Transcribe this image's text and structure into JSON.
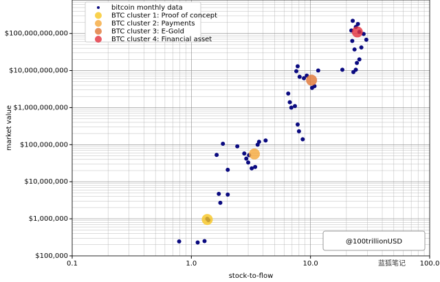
{
  "chart_data": {
    "type": "scatter",
    "x_label": "stock-to-flow",
    "y_label": "market value",
    "log_x": true,
    "log_y": true,
    "grid": "both",
    "legend": "upper left",
    "xlim": [
      0.1,
      100
    ],
    "ylim": [
      100000,
      800000000000
    ],
    "xticks": [
      0.1,
      {
        "value": 1,
        "label": "1.0"
      },
      {
        "value": 10,
        "label": "10.0"
      },
      {
        "value": 100,
        "label": "100.0"
      }
    ],
    "yticks": [
      {
        "value": 100000,
        "label": "$100,000"
      },
      {
        "value": 1000000,
        "label": "$1,000,000"
      },
      {
        "value": 10000000,
        "label": "$10,000,000"
      },
      {
        "value": 100000000,
        "label": "$100,000,000"
      },
      {
        "value": 1000000000,
        "label": "$1,000,000,000"
      },
      {
        "value": 10000000000,
        "label": "$10,000,000,000"
      },
      {
        "value": 100000000000,
        "label": "$100,000,000,000"
      }
    ],
    "series": [
      {
        "name": "bitcoin monthly data",
        "color": "#0a0a80",
        "size": 3,
        "x": [
          0.79,
          1.13,
          1.29,
          1.36,
          1.39,
          1.7,
          1.75,
          2.02,
          2.02,
          1.63,
          1.84,
          2.43,
          2.78,
          2.89,
          3.0,
          3.21,
          3.43,
          3.6,
          3.7,
          4.2,
          3.05,
          6.5,
          6.7,
          6.9,
          7.4,
          7.6,
          7.8,
          8.1,
          8.8,
          9.3,
          7.8,
          8.0,
          8.6,
          10.3,
          10.8,
          11.6,
          22,
          22.6,
          24,
          25,
          25.7,
          27.9,
          29.4,
          22.4,
          23.4,
          24.5,
          24,
          22.9,
          18.5,
          25.7,
          26.7
        ],
        "values": [
          245000,
          230000,
          250000,
          1000000,
          920000,
          4700000,
          2700000,
          4500000,
          21000000,
          53000000,
          106000000,
          90000000,
          58000000,
          42000000,
          33000000,
          23000000,
          25000000,
          100000000,
          120000000,
          130000000,
          52000000,
          2400000000,
          1400000000,
          1000000000,
          1100000000,
          9600000000,
          13000000000,
          6800000000,
          6200000000,
          7300000000,
          350000000,
          230000000,
          140000000,
          3400000000,
          3800000000,
          10000000000,
          120000000000,
          220000000000,
          150000000000,
          180000000000,
          110000000000,
          97000000000,
          68000000000,
          63000000000,
          37000000000,
          16000000000,
          10500000000,
          9100000000,
          10500000000,
          20000000000,
          42000000000
        ]
      },
      {
        "name": "BTC cluster 1: Proof of concept",
        "color": "#f7c520",
        "size": 8,
        "x": [
          1.36
        ],
        "values": [
          960000
        ]
      },
      {
        "name": "BTC cluster 2: Payments",
        "color": "#f5a83a",
        "size": 8,
        "x": [
          3.38
        ],
        "values": [
          56000000
        ]
      },
      {
        "name": "BTC cluster 3: E-Gold",
        "color": "#e07535",
        "size": 8,
        "x": [
          10.2
        ],
        "values": [
          5500000000
        ]
      },
      {
        "name": "BTC cluster 4: Financial asset",
        "color": "#e2303c",
        "size": 8,
        "x": [
          24.7
        ],
        "values": [
          110000000000
        ]
      }
    ],
    "annotations": [
      "@100trillionUSD",
      "蓝狐笔记"
    ]
  }
}
